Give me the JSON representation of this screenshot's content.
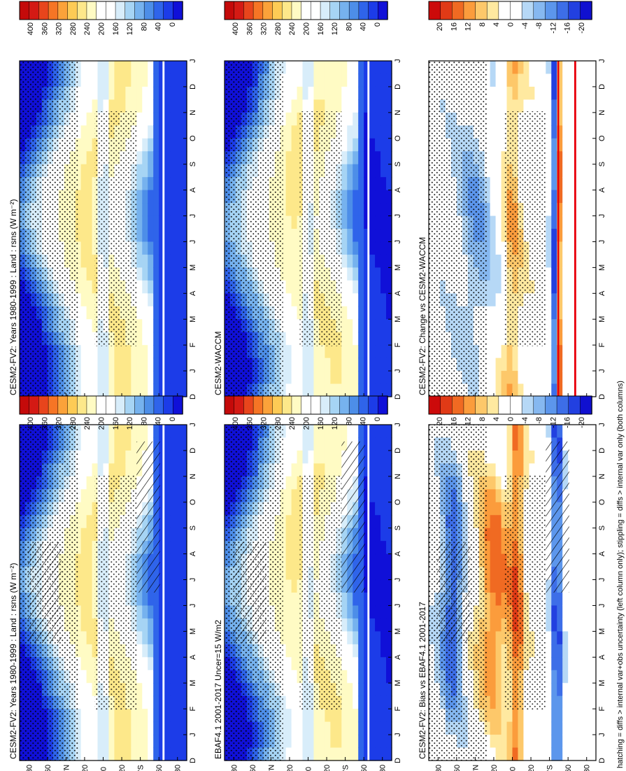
{
  "figure": {
    "caption": "hatching = diffs > internal var+obs uncertainty (left column only); stippling = diffs > internal var only (both columns)",
    "month_ticks": [
      "D",
      "J",
      "F",
      "M",
      "A",
      "M",
      "J",
      "J",
      "A",
      "S",
      "O",
      "N",
      "D",
      "J"
    ],
    "lat_ticks": [
      "80",
      "60",
      "°N",
      "20",
      "0",
      "20",
      "°S",
      "60",
      "80"
    ],
    "palette_abs": [
      "#1010d8",
      "#1c3ce8",
      "#2f64ea",
      "#4d8ee8",
      "#76b2ee",
      "#a6d4f4",
      "#d8edfa",
      "#ffffff",
      "#ffffff",
      "#fffbc4",
      "#fde88a",
      "#fdcb55",
      "#fba23a",
      "#f67525",
      "#e8451c",
      "#d41a14",
      "#c40a0a"
    ],
    "palette_diff": [
      "#1010d0",
      "#2240e0",
      "#3d6ee8",
      "#5c96ec",
      "#86b8f0",
      "#b6d8f6",
      "#ffffff",
      "#ffffff",
      "#ffe9a0",
      "#fdc86a",
      "#fb9c3c",
      "#f06a22",
      "#e03a16",
      "#cc0a0a"
    ],
    "stipple_color": "#000000",
    "hatch_color": "#000000",
    "accent_red_line": "#e8000a"
  },
  "colorbars": {
    "absolute": {
      "labels": [
        "400",
        "360",
        "320",
        "280",
        "240",
        "200",
        "160",
        "120",
        "80",
        "40",
        "0"
      ]
    },
    "difference": {
      "labels": [
        "20",
        "16",
        "12",
        "8",
        "4",
        "0",
        "-4",
        "-8",
        "-12",
        "-16",
        "-20"
      ]
    }
  },
  "chart_data": [
    {
      "panel": "top-left",
      "type": "heatmap",
      "title": "CESM2-FV2: Years 1980-1999 : Land : rsns (W m⁻²)",
      "variable": "rsns",
      "units": "W m-2",
      "xlabel": "latitude",
      "ylabel": "month",
      "colorbar": "absolute",
      "hatching": true,
      "stippling": true
    },
    {
      "panel": "middle-left",
      "type": "heatmap",
      "title": "EBAF4.1 2001-2017 Uncer=15 W/m2",
      "variable": "rsns",
      "units": "W m-2",
      "colorbar": "absolute",
      "hatching": true,
      "stippling": true
    },
    {
      "panel": "bottom-left",
      "type": "heatmap",
      "title": "CESM2-FV2: Bias vs EBAF4.1 2001-2017",
      "variable": "rsns difference",
      "units": "W m-2",
      "colorbar": "difference",
      "hatching": true,
      "stippling": true
    },
    {
      "panel": "top-right",
      "type": "heatmap",
      "title": "CESM2-FV2: Years 1980-1999 : Land : rsns (W m⁻²)",
      "variable": "rsns",
      "units": "W m-2",
      "colorbar": "absolute",
      "stippling": true
    },
    {
      "panel": "middle-right",
      "type": "heatmap",
      "title": "CESM2-WACCM",
      "variable": "rsns",
      "units": "W m-2",
      "colorbar": "absolute",
      "stippling": true
    },
    {
      "panel": "bottom-right",
      "type": "heatmap",
      "title": "CESM2-FV2: Change vs CESM2-WACCM",
      "variable": "rsns difference",
      "units": "W m-2",
      "colorbar": "difference",
      "stippling": true
    }
  ]
}
